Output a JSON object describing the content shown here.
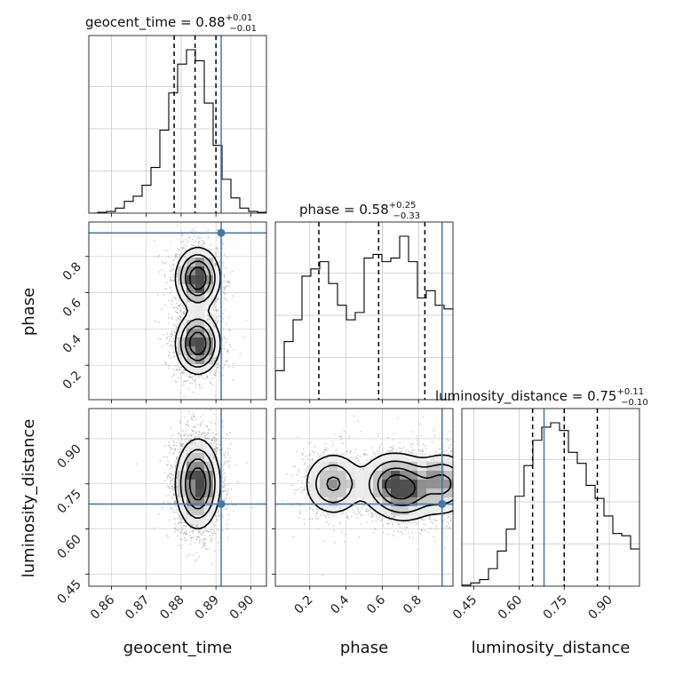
{
  "chart_data": {
    "type": "corner",
    "colors": {
      "truth": "#4477aa",
      "hist": "#000000",
      "density": "#000000",
      "grid": "#c8c8c8"
    },
    "parameters": [
      {
        "name": "geocent_time",
        "ticks": [
          0.86,
          0.87,
          0.88,
          0.89,
          0.9
        ],
        "tick_labels": [
          "0.86",
          "0.87",
          "0.88",
          "0.89",
          "0.90"
        ],
        "range": [
          0.8535,
          0.9045
        ],
        "truth": 0.8915,
        "quantiles": [
          0.878,
          0.884,
          0.89
        ],
        "title_value": "0.88",
        "title_plus": "+0.01",
        "title_minus": "−0.01",
        "hist": [
          0,
          1,
          2,
          6,
          14,
          20,
          33,
          54,
          98,
          142,
          176,
          193,
          180,
          130,
          80,
          40,
          18,
          6,
          2,
          1
        ]
      },
      {
        "name": "phase",
        "ticks": [
          0.2,
          0.4,
          0.6,
          0.8
        ],
        "tick_labels": [
          "0.2",
          "0.4",
          "0.6",
          "0.8"
        ],
        "range": [
          0.01,
          0.99
        ],
        "truth": 0.93,
        "quantiles": [
          0.25,
          0.58,
          0.835
        ],
        "title_value": "0.58",
        "title_plus": "+0.25",
        "title_minus": "−0.33",
        "hist": [
          8,
          16,
          22,
          34,
          36,
          38,
          32,
          26,
          22,
          24,
          39,
          40,
          38,
          39,
          45,
          38,
          28,
          30,
          26,
          25
        ]
      },
      {
        "name": "luminosity_distance",
        "ticks": [
          0.45,
          0.6,
          0.75,
          0.9
        ],
        "tick_labels": [
          "0.45",
          "0.60",
          "0.75",
          "0.90"
        ],
        "range": [
          0.41,
          1.0
        ],
        "truth": 0.683,
        "quantiles": [
          0.645,
          0.75,
          0.86
        ],
        "title_value": "0.75",
        "title_plus": "+0.11",
        "title_minus": "−0.10",
        "hist": [
          1,
          3,
          6,
          16,
          32,
          52,
          82,
          110,
          133,
          145,
          149,
          142,
          122,
          112,
          92,
          80,
          64,
          48,
          46,
          34
        ]
      }
    ],
    "pairs": [
      {
        "x": "geocent_time",
        "y": "phase",
        "centers": [
          [
            0.8848,
            0.68
          ],
          [
            0.8848,
            0.32
          ]
        ],
        "sigma": [
          0.0032,
          0.085
        ]
      },
      {
        "x": "geocent_time",
        "y": "luminosity_distance",
        "centers": [
          [
            0.8848,
            0.75
          ]
        ],
        "sigma": [
          0.0032,
          0.075
        ]
      },
      {
        "x": "phase",
        "y": "luminosity_distance",
        "centers": [
          [
            0.33,
            0.75
          ],
          [
            0.64,
            0.75
          ],
          [
            0.74,
            0.73
          ],
          [
            0.94,
            0.75
          ]
        ],
        "sigma": [
          0.085,
          0.055
        ]
      }
    ]
  }
}
